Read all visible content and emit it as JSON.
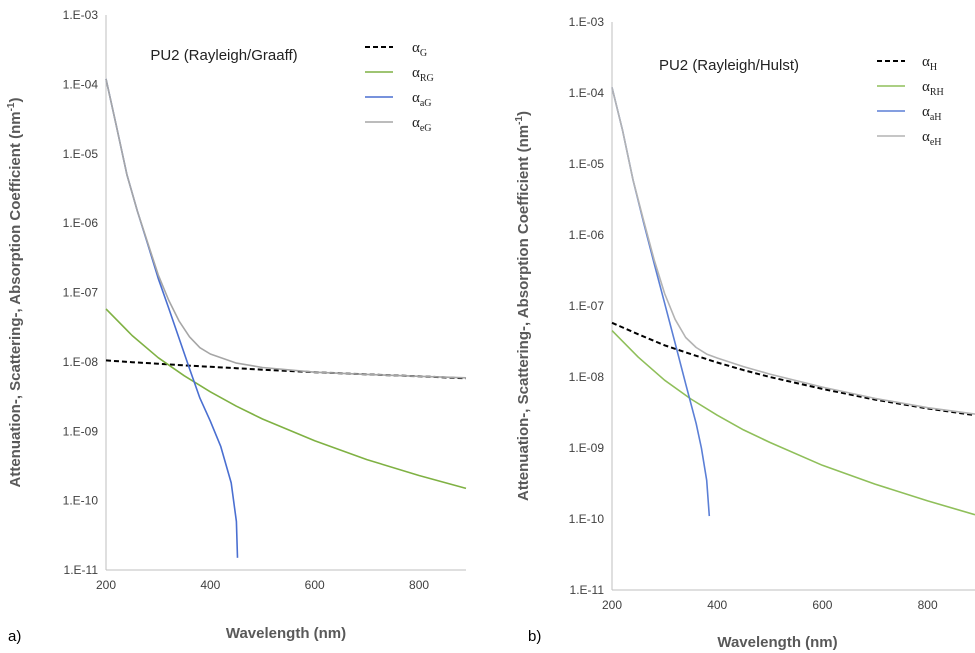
{
  "chart_data": [
    {
      "type": "line",
      "panel_label": "a)",
      "title": "PU2 (Rayleigh/Graaff)",
      "xlabel": "Wavelength (nm)",
      "ylabel_main": "Attenuation-, Scattering-, Absorption Coefficient (nm",
      "ylabel_sup": "-1",
      "ylabel_end": ")",
      "xlim": [
        200,
        890
      ],
      "ylim": [
        1e-11,
        0.001
      ],
      "yscale": "log",
      "x_ticks": [
        "200",
        "400",
        "600",
        "800"
      ],
      "y_ticks": [
        "1.E-11",
        "1.E-10",
        "1.E-09",
        "1.E-08",
        "1.E-07",
        "1.E-06",
        "1.E-05",
        "1.E-04",
        "1.E-03"
      ],
      "grid": false,
      "legend_position": "top-right",
      "series": [
        {
          "name": "α",
          "name_sub": "G",
          "color": "#000000",
          "dash": "dashed",
          "x": [
            200,
            250,
            300,
            350,
            400,
            450,
            500,
            600,
            700,
            800,
            890
          ],
          "y": [
            1.05e-08,
            9.9e-09,
            9.4e-09,
            8.9e-09,
            8.5e-09,
            8.1e-09,
            7.7e-09,
            7.1e-09,
            6.6e-09,
            6.2e-09,
            5.8e-09
          ]
        },
        {
          "name": "α",
          "name_sub": "RG",
          "color": "#7fb143",
          "dash": "solid",
          "x": [
            200,
            250,
            300,
            350,
            400,
            450,
            500,
            600,
            700,
            800,
            890
          ],
          "y": [
            5.8e-08,
            2.4e-08,
            1.15e-08,
            6.3e-09,
            3.7e-09,
            2.3e-09,
            1.5e-09,
            7.3e-10,
            3.9e-10,
            2.3e-10,
            1.5e-10
          ]
        },
        {
          "name": "α",
          "name_sub": "aG",
          "color": "#4a6fd1",
          "dash": "solid",
          "x": [
            200,
            220,
            240,
            260,
            280,
            300,
            320,
            340,
            360,
            380,
            400,
            420,
            440,
            450,
            452
          ],
          "y": [
            0.00012,
            2.5e-05,
            5e-06,
            1.5e-06,
            5e-07,
            1.6e-07,
            6e-08,
            2.2e-08,
            8e-09,
            3e-09,
            1.4e-09,
            6e-10,
            1.8e-10,
            5e-11,
            1.5e-11
          ]
        },
        {
          "name": "α",
          "name_sub": "eG",
          "color": "#a6a6a6",
          "dash": "solid",
          "x": [
            200,
            220,
            240,
            260,
            280,
            300,
            320,
            340,
            360,
            380,
            400,
            450,
            500,
            600,
            700,
            800,
            890
          ],
          "y": [
            0.00012,
            2.5e-05,
            5e-06,
            1.5e-06,
            5.2e-07,
            1.8e-07,
            7.8e-08,
            3.9e-08,
            2.3e-08,
            1.6e-08,
            1.3e-08,
            9.6e-09,
            8.3e-09,
            7.1e-09,
            6.6e-09,
            6.2e-09,
            5.9e-09
          ]
        }
      ]
    },
    {
      "type": "line",
      "panel_label": "b)",
      "title": "PU2 (Rayleigh/Hulst)",
      "xlabel": "Wavelength (nm)",
      "ylabel_main": "Attenuation-, Scattering-, Absorption Coefficient (nm",
      "ylabel_sup": "-1",
      "ylabel_end": ")",
      "xlim": [
        200,
        890
      ],
      "ylim": [
        1e-11,
        0.001
      ],
      "yscale": "log",
      "x_ticks": [
        "200",
        "400",
        "600",
        "800"
      ],
      "y_ticks": [
        "1.E-11",
        "1.E-10",
        "1.E-09",
        "1.E-08",
        "1.E-07",
        "1.E-06",
        "1.E-05",
        "1.E-04",
        "1.E-03"
      ],
      "grid": false,
      "legend_position": "top-right",
      "series": [
        {
          "name": "α",
          "name_sub": "H",
          "color": "#000000",
          "dash": "dashed",
          "x": [
            200,
            250,
            300,
            350,
            400,
            450,
            500,
            600,
            700,
            800,
            890
          ],
          "y": [
            5.8e-08,
            4e-08,
            2.8e-08,
            2.1e-08,
            1.6e-08,
            1.25e-08,
            1e-08,
            6.8e-09,
            4.8e-09,
            3.6e-09,
            2.9e-09
          ]
        },
        {
          "name": "α",
          "name_sub": "RH",
          "color": "#8fbf5a",
          "dash": "solid",
          "x": [
            200,
            250,
            300,
            350,
            400,
            450,
            500,
            600,
            700,
            800,
            890
          ],
          "y": [
            4.5e-08,
            1.9e-08,
            9e-09,
            4.9e-09,
            2.9e-09,
            1.8e-09,
            1.2e-09,
            5.7e-10,
            3.1e-10,
            1.8e-10,
            1.15e-10
          ]
        },
        {
          "name": "α",
          "name_sub": "aH",
          "color": "#5b7fd6",
          "dash": "solid",
          "x": [
            200,
            220,
            240,
            260,
            280,
            300,
            320,
            340,
            360,
            370,
            380,
            385
          ],
          "y": [
            0.00012,
            3e-05,
            6e-06,
            1.5e-06,
            4e-07,
            1.1e-07,
            3e-08,
            8e-09,
            2.2e-09,
            1e-09,
            3.5e-10,
            1.1e-10
          ]
        },
        {
          "name": "α",
          "name_sub": "eH",
          "color": "#b3b3b3",
          "dash": "solid",
          "x": [
            200,
            220,
            240,
            260,
            280,
            300,
            320,
            340,
            360,
            380,
            400,
            450,
            500,
            600,
            700,
            800,
            890
          ],
          "y": [
            0.00012,
            3e-05,
            6e-06,
            1.6e-06,
            4.5e-07,
            1.5e-07,
            6.5e-08,
            3.6e-08,
            2.6e-08,
            2.1e-08,
            1.85e-08,
            1.4e-08,
            1.1e-08,
            7.2e-09,
            5e-09,
            3.7e-09,
            3e-09
          ]
        }
      ]
    }
  ]
}
